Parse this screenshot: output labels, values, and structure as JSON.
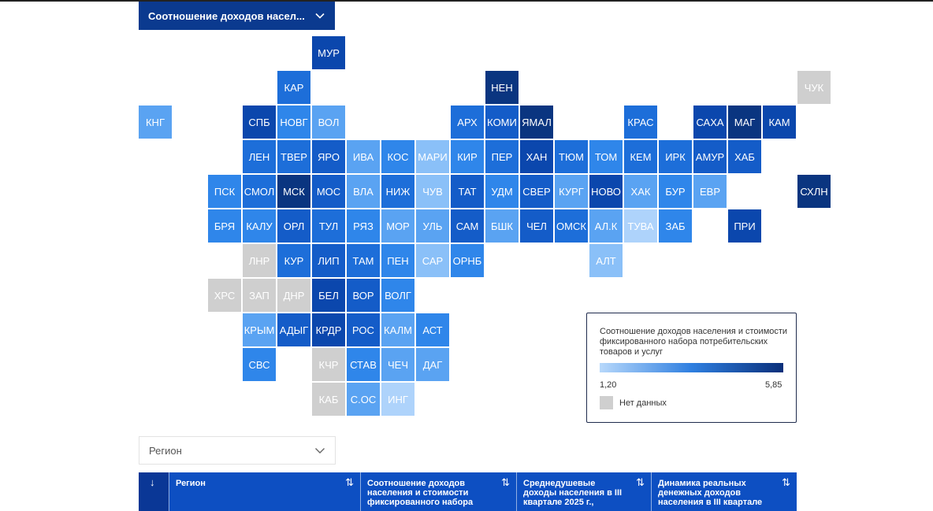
{
  "metric_selector": {
    "label": "Соотношение доходов насел..."
  },
  "map": {
    "colors": {
      "no_data": "#cfcfcf",
      "c1": "#aed3fb",
      "c2": "#8ac0f8",
      "c3": "#5aa3f2",
      "c4": "#2f86ea",
      "c5": "#1d6ed9",
      "c6": "#145cc8",
      "c7": "#0b47ad",
      "c8": "#0a3580"
    },
    "tiles": [
      {
        "code": "МУР",
        "row": 0,
        "col": 6,
        "level": "c7"
      },
      {
        "code": "КАР",
        "row": 1,
        "col": 5,
        "level": "c5"
      },
      {
        "code": "НЕН",
        "row": 1,
        "col": 11,
        "level": "c8"
      },
      {
        "code": "ЧУК",
        "row": 1,
        "col": 20,
        "level": "no_data"
      },
      {
        "code": "КНГ",
        "row": 2,
        "col": 1,
        "level": "c3"
      },
      {
        "code": "СПБ",
        "row": 2,
        "col": 4,
        "level": "c7"
      },
      {
        "code": "НОВГ",
        "row": 2,
        "col": 5,
        "level": "c4"
      },
      {
        "code": "ВОЛ",
        "row": 2,
        "col": 6,
        "level": "c3"
      },
      {
        "code": "АРХ",
        "row": 2,
        "col": 10,
        "level": "c5"
      },
      {
        "code": "КОМИ",
        "row": 2,
        "col": 11,
        "level": "c6"
      },
      {
        "code": "ЯМАЛ",
        "row": 2,
        "col": 12,
        "level": "c8"
      },
      {
        "code": "КРАС",
        "row": 2,
        "col": 15,
        "level": "c5"
      },
      {
        "code": "САХА",
        "row": 2,
        "col": 17,
        "level": "c7"
      },
      {
        "code": "МАГ",
        "row": 2,
        "col": 18,
        "level": "c8"
      },
      {
        "code": "КАМ",
        "row": 2,
        "col": 19,
        "level": "c7"
      },
      {
        "code": "ЛЕН",
        "row": 3,
        "col": 4,
        "level": "c5"
      },
      {
        "code": "ТВЕР",
        "row": 3,
        "col": 5,
        "level": "c5"
      },
      {
        "code": "ЯРО",
        "row": 3,
        "col": 6,
        "level": "c6"
      },
      {
        "code": "ИВА",
        "row": 3,
        "col": 7,
        "level": "c3"
      },
      {
        "code": "КОС",
        "row": 3,
        "col": 8,
        "level": "c4"
      },
      {
        "code": "МАРИ",
        "row": 3,
        "col": 9,
        "level": "c2"
      },
      {
        "code": "КИР",
        "row": 3,
        "col": 10,
        "level": "c4"
      },
      {
        "code": "ПЕР",
        "row": 3,
        "col": 11,
        "level": "c5"
      },
      {
        "code": "ХАН",
        "row": 3,
        "col": 12,
        "level": "c7"
      },
      {
        "code": "ТЮМ",
        "row": 3,
        "col": 13,
        "level": "c5"
      },
      {
        "code": "ТОМ",
        "row": 3,
        "col": 14,
        "level": "c4"
      },
      {
        "code": "КЕМ",
        "row": 3,
        "col": 15,
        "level": "c5"
      },
      {
        "code": "ИРК",
        "row": 3,
        "col": 16,
        "level": "c5"
      },
      {
        "code": "АМУР",
        "row": 3,
        "col": 17,
        "level": "c6"
      },
      {
        "code": "ХАБ",
        "row": 3,
        "col": 18,
        "level": "c6"
      },
      {
        "code": "ПСК",
        "row": 4,
        "col": 3,
        "level": "c4"
      },
      {
        "code": "СМОЛ",
        "row": 4,
        "col": 4,
        "level": "c5"
      },
      {
        "code": "МСК",
        "row": 4,
        "col": 5,
        "level": "c8"
      },
      {
        "code": "МОС",
        "row": 4,
        "col": 6,
        "level": "c6"
      },
      {
        "code": "ВЛА",
        "row": 4,
        "col": 7,
        "level": "c3"
      },
      {
        "code": "НИЖ",
        "row": 4,
        "col": 8,
        "level": "c5"
      },
      {
        "code": "ЧУВ",
        "row": 4,
        "col": 9,
        "level": "c2"
      },
      {
        "code": "ТАТ",
        "row": 4,
        "col": 10,
        "level": "c6"
      },
      {
        "code": "УДМ",
        "row": 4,
        "col": 11,
        "level": "c4"
      },
      {
        "code": "СВЕР",
        "row": 4,
        "col": 12,
        "level": "c6"
      },
      {
        "code": "КУРГ",
        "row": 4,
        "col": 13,
        "level": "c3"
      },
      {
        "code": "НОВО",
        "row": 4,
        "col": 14,
        "level": "c7"
      },
      {
        "code": "ХАК",
        "row": 4,
        "col": 15,
        "level": "c3"
      },
      {
        "code": "БУР",
        "row": 4,
        "col": 16,
        "level": "c4"
      },
      {
        "code": "ЕВР",
        "row": 4,
        "col": 17,
        "level": "c3"
      },
      {
        "code": "СХЛН",
        "row": 4,
        "col": 20,
        "level": "c8"
      },
      {
        "code": "БРЯ",
        "row": 5,
        "col": 3,
        "level": "c4"
      },
      {
        "code": "КАЛУ",
        "row": 5,
        "col": 4,
        "level": "c4"
      },
      {
        "code": "ОРЛ",
        "row": 5,
        "col": 5,
        "level": "c6"
      },
      {
        "code": "ТУЛ",
        "row": 5,
        "col": 6,
        "level": "c5"
      },
      {
        "code": "РЯЗ",
        "row": 5,
        "col": 7,
        "level": "c4"
      },
      {
        "code": "МОР",
        "row": 5,
        "col": 8,
        "level": "c3"
      },
      {
        "code": "УЛЬ",
        "row": 5,
        "col": 9,
        "level": "c3"
      },
      {
        "code": "САМ",
        "row": 5,
        "col": 10,
        "level": "c6"
      },
      {
        "code": "БШК",
        "row": 5,
        "col": 11,
        "level": "c3"
      },
      {
        "code": "ЧЕЛ",
        "row": 5,
        "col": 12,
        "level": "c6"
      },
      {
        "code": "ОМСК",
        "row": 5,
        "col": 13,
        "level": "c5"
      },
      {
        "code": "АЛ.К",
        "row": 5,
        "col": 14,
        "level": "c3"
      },
      {
        "code": "ТУВА",
        "row": 5,
        "col": 15,
        "level": "c1"
      },
      {
        "code": "ЗАБ",
        "row": 5,
        "col": 16,
        "level": "c4"
      },
      {
        "code": "ПРИ",
        "row": 5,
        "col": 18,
        "level": "c7"
      },
      {
        "code": "ЛНР",
        "row": 6,
        "col": 4,
        "level": "no_data"
      },
      {
        "code": "КУР",
        "row": 6,
        "col": 5,
        "level": "c5"
      },
      {
        "code": "ЛИП",
        "row": 6,
        "col": 6,
        "level": "c6"
      },
      {
        "code": "ТАМ",
        "row": 6,
        "col": 7,
        "level": "c5"
      },
      {
        "code": "ПЕН",
        "row": 6,
        "col": 8,
        "level": "c4"
      },
      {
        "code": "САР",
        "row": 6,
        "col": 9,
        "level": "c2"
      },
      {
        "code": "ОРНБ",
        "row": 6,
        "col": 10,
        "level": "c4"
      },
      {
        "code": "АЛТ",
        "row": 6,
        "col": 14,
        "level": "c2"
      },
      {
        "code": "ХРС",
        "row": 7,
        "col": 3,
        "level": "no_data"
      },
      {
        "code": "ЗАП",
        "row": 7,
        "col": 4,
        "level": "no_data"
      },
      {
        "code": "ДНР",
        "row": 7,
        "col": 5,
        "level": "no_data"
      },
      {
        "code": "БЕЛ",
        "row": 7,
        "col": 6,
        "level": "c7"
      },
      {
        "code": "ВОР",
        "row": 7,
        "col": 7,
        "level": "c6"
      },
      {
        "code": "ВОЛГ",
        "row": 7,
        "col": 8,
        "level": "c4"
      },
      {
        "code": "КРЫМ",
        "row": 8,
        "col": 4,
        "level": "c3"
      },
      {
        "code": "АДЫГ",
        "row": 8,
        "col": 5,
        "level": "c6"
      },
      {
        "code": "КРДР",
        "row": 8,
        "col": 6,
        "level": "c7"
      },
      {
        "code": "РОС",
        "row": 8,
        "col": 7,
        "level": "c6"
      },
      {
        "code": "КАЛМ",
        "row": 8,
        "col": 8,
        "level": "c3"
      },
      {
        "code": "АСТ",
        "row": 8,
        "col": 9,
        "level": "c4"
      },
      {
        "code": "СВС",
        "row": 9,
        "col": 4,
        "level": "c4"
      },
      {
        "code": "КЧР",
        "row": 9,
        "col": 6,
        "level": "no_data"
      },
      {
        "code": "СТАВ",
        "row": 9,
        "col": 7,
        "level": "c4"
      },
      {
        "code": "ЧЕЧ",
        "row": 9,
        "col": 8,
        "level": "c3"
      },
      {
        "code": "ДАГ",
        "row": 9,
        "col": 9,
        "level": "c3"
      },
      {
        "code": "КАБ",
        "row": 10,
        "col": 6,
        "level": "no_data"
      },
      {
        "code": "С.ОС",
        "row": 10,
        "col": 7,
        "level": "c3"
      },
      {
        "code": "ИНГ",
        "row": 10,
        "col": 8,
        "level": "c1"
      }
    ]
  },
  "legend": {
    "title": "Соотношение доходов населения и стоимости фиксированного набора потребительских товаров и услуг",
    "min": "1,20",
    "max": "5,85",
    "no_data_label": "Нет данных"
  },
  "region_select": {
    "placeholder": "Регион"
  },
  "table": {
    "sort_indicator": "↓",
    "columns": [
      {
        "label": "Регион",
        "sort_icon": "⇅"
      },
      {
        "label": "Соотношение доходов населения и стоимости фиксированного набора",
        "sort_icon": "⇅"
      },
      {
        "label": "Среднедушевые доходы населения в III квартале 2025 г.,",
        "sort_icon": "⇅"
      },
      {
        "label": "Динамика реальных денежных доходов населения в III квартале",
        "sort_icon": "⇅"
      }
    ]
  }
}
